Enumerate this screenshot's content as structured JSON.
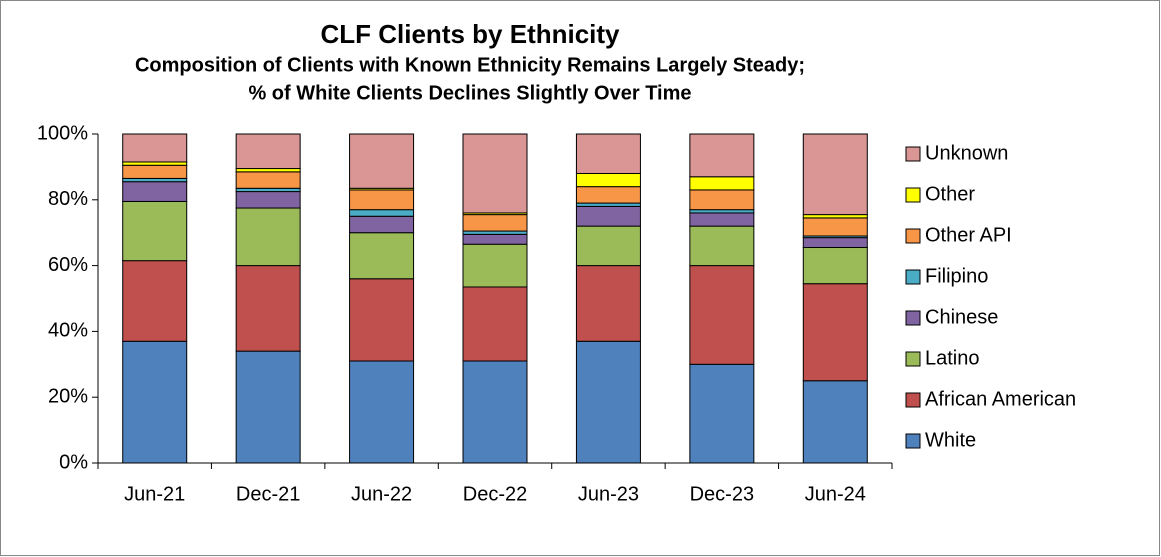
{
  "chart_data": {
    "type": "stacked_bar",
    "title": "CLF Clients by Ethnicity",
    "subtitle": [
      "Composition of Clients with Known Ethnicity Remains Largely Steady;",
      "% of White Clients Declines Slightly Over Time"
    ],
    "categories": [
      "Jun-21",
      "Dec-21",
      "Jun-22",
      "Dec-22",
      "Jun-23",
      "Dec-23",
      "Jun-24"
    ],
    "series": [
      {
        "name": "White",
        "color": "#4f81bd",
        "values": [
          37,
          34,
          31,
          31,
          37,
          30,
          25
        ]
      },
      {
        "name": "African American",
        "color": "#c0504d",
        "values": [
          24.5,
          26,
          25,
          22.5,
          23,
          30,
          29.5
        ]
      },
      {
        "name": "Latino",
        "color": "#9bbb59",
        "values": [
          18,
          17.5,
          14,
          13,
          12,
          12,
          11
        ]
      },
      {
        "name": "Chinese",
        "color": "#8064a2",
        "values": [
          6,
          5,
          5,
          3,
          6,
          4,
          3
        ]
      },
      {
        "name": "Filipino",
        "color": "#4bacc6",
        "values": [
          1,
          1,
          2,
          1,
          1,
          1,
          0.5
        ]
      },
      {
        "name": "Other API",
        "color": "#f79646",
        "values": [
          4,
          5,
          6,
          5,
          5,
          6,
          5.5
        ]
      },
      {
        "name": "Other",
        "color": "#ffff00",
        "values": [
          1,
          1,
          0.5,
          0.5,
          4,
          4,
          1
        ]
      },
      {
        "name": "Unknown",
        "color": "#d99694",
        "values": [
          8.5,
          10.5,
          16.5,
          24,
          12,
          13,
          24.5
        ]
      }
    ],
    "ylim": [
      0,
      100
    ],
    "yticks": [
      {
        "value": 0,
        "label": "0%"
      },
      {
        "value": 20,
        "label": "20%"
      },
      {
        "value": 40,
        "label": "40%"
      },
      {
        "value": 60,
        "label": "60%"
      },
      {
        "value": 80,
        "label": "80%"
      },
      {
        "value": 100,
        "label": "100%"
      }
    ],
    "legend": "right"
  }
}
